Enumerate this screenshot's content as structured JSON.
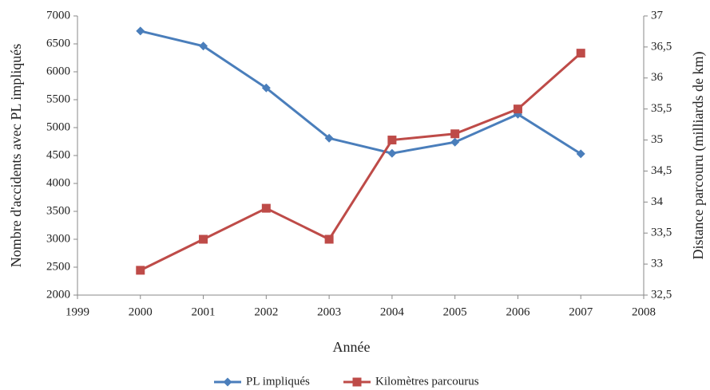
{
  "chart_data": {
    "type": "line",
    "x_label": "Année",
    "y_label": "Nombre d'accidents avec PL impliqués",
    "y2_label": "Distance parcouru (milliards de km)",
    "x": [
      2000,
      2001,
      2002,
      2003,
      2004,
      2005,
      2006,
      2007
    ],
    "xlim": [
      1999,
      2008
    ],
    "xticks": [
      1999,
      2000,
      2001,
      2002,
      2003,
      2004,
      2005,
      2006,
      2007,
      2008
    ],
    "ylim": [
      2000,
      7000
    ],
    "yticks": [
      2000,
      2500,
      3000,
      3500,
      4000,
      4500,
      5000,
      5500,
      6000,
      6500,
      7000
    ],
    "y2lim": [
      32.5,
      37
    ],
    "y2ticks": [
      {
        "value": 32.5,
        "label": "32,5"
      },
      33,
      {
        "value": 33.5,
        "label": "33,5"
      },
      34,
      {
        "value": 34.5,
        "label": "34,5"
      },
      35,
      {
        "value": 35.5,
        "label": "35,5"
      },
      36,
      {
        "value": 36.5,
        "label": "36,5"
      },
      37
    ],
    "grid": false,
    "legend": "bottom",
    "series": [
      {
        "name": "PL impliqués",
        "color": "#4a7ebb",
        "marker": "diamond",
        "values": [
          6730,
          6460,
          5710,
          4810,
          4540,
          4740,
          5240,
          4530
        ]
      },
      {
        "name": "Kilomètres parcourus",
        "color": "#be4b48",
        "marker": "square",
        "axis": "y2",
        "values": [
          32.9,
          33.4,
          33.9,
          33.4,
          35.0,
          35.1,
          35.5,
          36.4
        ]
      }
    ]
  }
}
